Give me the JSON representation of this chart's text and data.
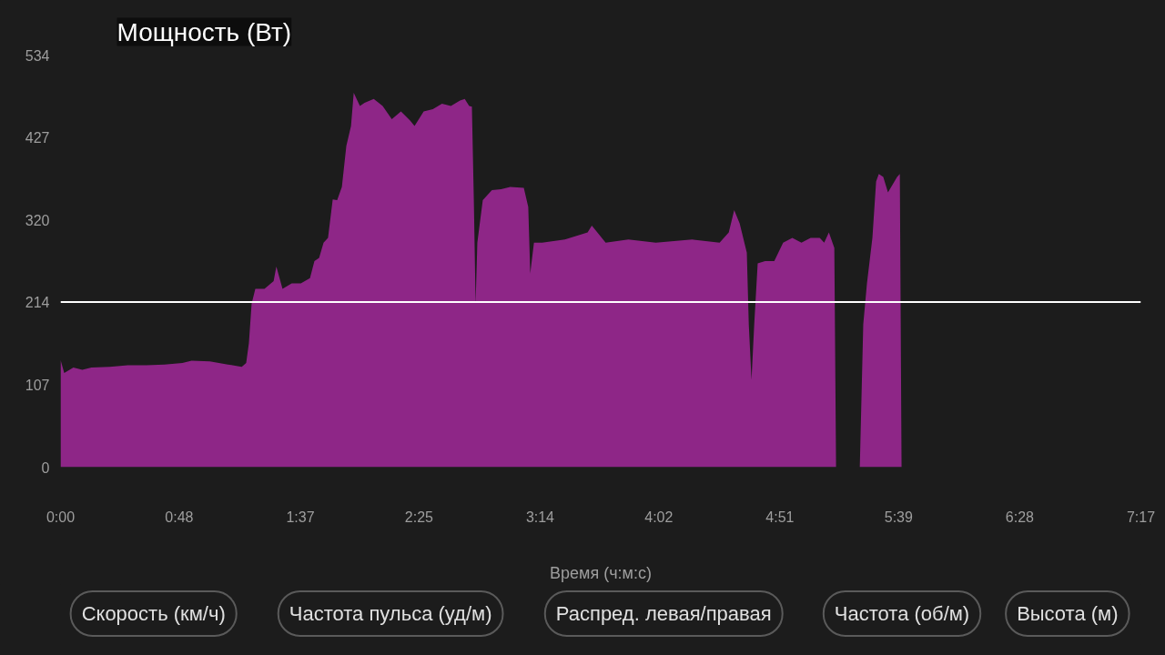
{
  "chart_data": {
    "type": "area",
    "title": "Мощность (Вт)",
    "xlabel": "Время (ч:м:с)",
    "xlim": [
      0,
      437
    ],
    "ylim": [
      0,
      534
    ],
    "xticks": [
      {
        "value": 0,
        "label": "0:00"
      },
      {
        "value": 48,
        "label": "0:48"
      },
      {
        "value": 97,
        "label": "1:37"
      },
      {
        "value": 145,
        "label": "2:25"
      },
      {
        "value": 194,
        "label": "3:14"
      },
      {
        "value": 242,
        "label": "4:02"
      },
      {
        "value": 291,
        "label": "4:51"
      },
      {
        "value": 339,
        "label": "5:39"
      },
      {
        "value": 388,
        "label": "6:28"
      },
      {
        "value": 437,
        "label": "7:17"
      }
    ],
    "yticks": [
      0,
      107,
      214,
      320,
      427,
      534
    ],
    "grid": false,
    "ref_lines": [
      {
        "axis": "y",
        "value": 214,
        "color": "#ffffff"
      }
    ],
    "series": [
      {
        "color": "#8e2687",
        "x": [
          0,
          1.5,
          5.2,
          8.8,
          12.5,
          19.9,
          27.2,
          34.6,
          42.0,
          49.3,
          53.0,
          60.4,
          67.7,
          73.3,
          75.1,
          76.2,
          77.3,
          78.8,
          82.5,
          86.2,
          87.3,
          89.8,
          93.5,
          97.2,
          100.9,
          102.7,
          104.6,
          106.4,
          108.2,
          110.1,
          111.9,
          113.8,
          115.6,
          117.5,
          118.6,
          121.1,
          123.0,
          126.7,
          130.3,
          134.0,
          137.7,
          141.4,
          143.2,
          146.9,
          150.6,
          154.3,
          157.9,
          161.6,
          163.5,
          165.3,
          166.4,
          167.2,
          167.9,
          168.6,
          170.8,
          174.5,
          178.2,
          181.9,
          187.4,
          189.2,
          190.0,
          191.5,
          194.8,
          204.0,
          213.2,
          214.9,
          220.5,
          229.7,
          240.8,
          255.5,
          266.6,
          270.3,
          272.5,
          274.7,
          277.6,
          278.4,
          279.5,
          280.6,
          282.0,
          285.0,
          288.7,
          292.3,
          296.0,
          299.7,
          303.4,
          307.1,
          308.9,
          310.8,
          313.0,
          313.7,
          318,
          323.3,
          324.7,
          326.2,
          328.4,
          329.9,
          331.0,
          332.8,
          334.7,
          338.4,
          339.5,
          340.2
        ],
        "values": [
          139,
          122,
          129,
          126,
          129,
          130,
          132,
          132,
          133,
          135,
          138,
          137,
          133,
          130,
          135,
          161,
          212,
          231,
          231,
          241,
          260,
          231,
          238,
          238,
          245,
          267,
          271,
          291,
          297,
          347,
          346,
          363,
          416,
          442,
          485,
          468,
          472,
          477,
          468,
          451,
          461,
          449,
          442,
          461,
          464,
          471,
          468,
          475,
          477,
          468,
          467,
          343,
          212,
          291,
          346,
          359,
          360,
          363,
          362,
          337,
          251,
          291,
          291,
          295,
          304,
          313,
          291,
          295,
          291,
          295,
          291,
          304,
          333,
          316,
          278,
          185,
          113,
          185,
          264,
          267,
          267,
          291,
          297,
          291,
          297,
          297,
          291,
          304,
          284,
          0,
          null,
          0,
          185,
          238,
          297,
          370,
          380,
          376,
          356,
          376,
          380,
          0
        ]
      }
    ],
    "annotations": [
      "Скорость (км/ч)",
      "Частота пульса (уд/м)",
      "Распред. левая/правая",
      "Частота (об/м)",
      "Высота (м)"
    ]
  }
}
